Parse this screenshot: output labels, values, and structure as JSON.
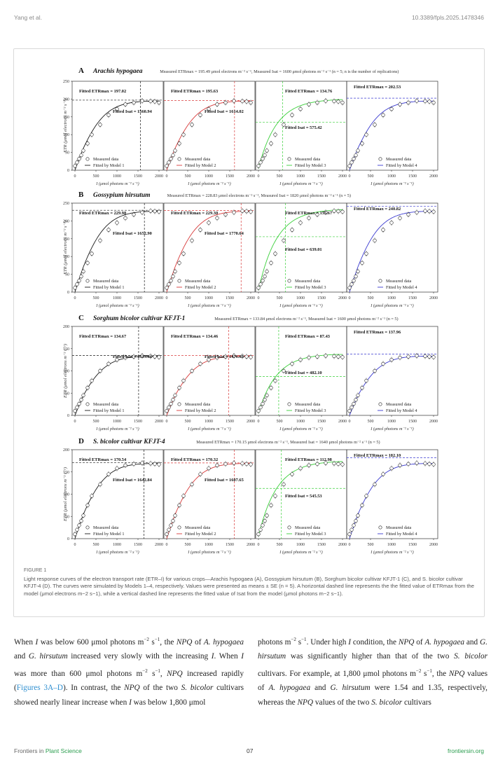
{
  "header": {
    "authors": "Yang et al.",
    "doi": "10.3389/fpls.2025.1478346"
  },
  "figure": {
    "caption_label": "FIGURE 1",
    "caption_text": "Light response curves of the electron transport rate (ETR–I) for various crops—Arachis hypogaea (A), Gossypium hirsutum (B), Sorghum bicolor cultivar KFJT-1 (C), and S. bicolor cultivar KFJT-4 (D). The curves were simulated by Models 1–4, respectively. Values were presented as means ± SE (n = 5). A horizontal dashed line represents the the fitted value of ETRmax from the model (μmol electrons m−2 s−1), while a vertical dashed line represents the fitted value of Isat from the model (μmol photons m−2 s−1).",
    "xlabel": "I (μmol photons m⁻² s⁻¹)",
    "ylabel": "ETR (μmol electrons m⁻² s⁻¹)",
    "legend_measured": "Measured data",
    "model_labels": [
      "Fitted by Model 1",
      "Fitted by Model 2",
      "Fitted by Model 3",
      "Fitted by Model 4"
    ],
    "model_colors": [
      "#1a1a1a",
      "#d83a3a",
      "#3ad03a",
      "#3a3ad0"
    ],
    "xticks": [
      "0",
      "500",
      "1000",
      "1500",
      "2000"
    ]
  },
  "chart_data": [
    {
      "panel": "A",
      "type": "line",
      "species": "Arachis hypogaea",
      "subtitle": "Measured ETRmax = 195.49 μmol electrons m⁻² s⁻¹, Measured Isat = 1600 μmol photons m⁻² s⁻¹ (n = 5; n is the number of replications)",
      "xlim": [
        0,
        2000
      ],
      "ylim": [
        0,
        250
      ],
      "yticks": [
        "0",
        "50",
        "100",
        "150",
        "200",
        "250"
      ],
      "etr_max": 195.49,
      "i_sat": 1600,
      "measured_x": [
        0,
        50,
        100,
        150,
        200,
        300,
        400,
        600,
        800,
        1000,
        1200,
        1400,
        1600,
        1800,
        1900,
        2000
      ],
      "measured_y": [
        12,
        22,
        32,
        42,
        55,
        75,
        100,
        128,
        155,
        172,
        185,
        190,
        195,
        194,
        193,
        190
      ],
      "fits": [
        {
          "etr": "Fitted ETRmax = 197.02",
          "isat": "Fitted Isat = 1560.94",
          "etr_val": 197.02,
          "isat_val": 1560.94
        },
        {
          "etr": "Fitted ETRmax = 195.63",
          "isat": "Fitted Isat = 1614.02",
          "etr_val": 195.63,
          "isat_val": 1614.02
        },
        {
          "etr": "Fitted ETRmax = 134.76",
          "isat": "Fitted Isat = 575.42",
          "etr_val": 134.76,
          "isat_val": 575.42
        },
        {
          "etr": "Fitted ETRmax = 202.53",
          "isat": "",
          "etr_val": 202.53,
          "isat_val": null
        }
      ]
    },
    {
      "panel": "B",
      "type": "line",
      "species": "Gossypium hirsutum",
      "subtitle": "Measured ETRmax = 228.83 μmol electrons m⁻² s⁻¹, Measured Isat = 1820 μmol photons m⁻² s⁻¹ (n = 5)",
      "xlim": [
        0,
        2000
      ],
      "ylim": [
        0,
        250
      ],
      "yticks": [
        "0",
        "50",
        "100",
        "150",
        "200",
        "250"
      ],
      "etr_max": 228.83,
      "i_sat": 1820,
      "measured_x": [
        0,
        50,
        100,
        150,
        200,
        300,
        400,
        600,
        800,
        1000,
        1200,
        1400,
        1600,
        1800,
        1900,
        2000
      ],
      "measured_y": [
        12,
        22,
        32,
        44,
        58,
        82,
        108,
        145,
        175,
        195,
        208,
        218,
        224,
        228,
        227,
        226
      ],
      "fits": [
        {
          "etr": "Fitted ETRmax = 229.98",
          "isat": "Fitted Isat = 1652.90",
          "etr_val": 229.98,
          "isat_val": 1652.9
        },
        {
          "etr": "Fitted ETRmax = 229.30",
          "isat": "Fitted Isat = 1770.64",
          "etr_val": 229.3,
          "isat_val": 1770.64
        },
        {
          "etr": "Fitted ETRmax = 155.67",
          "isat": "Fitted Isat = 639.01",
          "etr_val": 155.67,
          "isat_val": 639.01
        },
        {
          "etr": "Fitted ETRmax = 240.82",
          "isat": "",
          "etr_val": 240.82,
          "isat_val": null
        }
      ]
    },
    {
      "panel": "C",
      "type": "line",
      "species": "Sorghum bicolor cultivar KFJT-1",
      "subtitle": "Measured ETRmax = 133.84 μmol electrons m⁻² s⁻¹, Measured Isat = 1600 μmol photons m⁻² s⁻¹ (n = 5)",
      "xlim": [
        0,
        2000
      ],
      "ylim": [
        0,
        200
      ],
      "yticks": [
        "0",
        "50",
        "100",
        "150",
        "200"
      ],
      "etr_max": 133.84,
      "i_sat": 1600,
      "measured_x": [
        0,
        50,
        100,
        150,
        200,
        300,
        400,
        600,
        800,
        1000,
        1200,
        1400,
        1600,
        1800,
        1900,
        2000
      ],
      "measured_y": [
        10,
        18,
        26,
        35,
        45,
        62,
        78,
        100,
        116,
        125,
        130,
        132,
        134,
        133,
        132,
        131
      ],
      "fits": [
        {
          "etr": "Fitted ETRmax = 134.67",
          "isat": "Fitted Isat = 1515.04",
          "etr_val": 134.67,
          "isat_val": 1515.04
        },
        {
          "etr": "Fitted ETRmax = 134.46",
          "isat": "Fitted Isat = 1476.69",
          "etr_val": 134.46,
          "isat_val": 1476.69
        },
        {
          "etr": "Fitted ETRmax = 87.43",
          "isat": "Fitted Isat = 482.10",
          "etr_val": 87.43,
          "isat_val": 482.1
        },
        {
          "etr": "Fitted ETRmax = 137.96",
          "isat": "",
          "etr_val": 137.96,
          "isat_val": null
        }
      ]
    },
    {
      "panel": "D",
      "type": "line",
      "species": "S. bicolor cultivar KFJT-4",
      "subtitle": "Measured ETRmax = 170.15 μmol electrons m⁻² s⁻¹, Measured Isat = 1640 μmol photons m⁻² s⁻¹ (n = 5)",
      "xlim": [
        0,
        2000
      ],
      "ylim": [
        0,
        200
      ],
      "yticks": [
        "0",
        "50",
        "100",
        "150",
        "200"
      ],
      "etr_max": 170.15,
      "i_sat": 1640,
      "measured_x": [
        0,
        50,
        100,
        150,
        200,
        300,
        400,
        600,
        800,
        1000,
        1200,
        1400,
        1600,
        1800,
        1900,
        2000
      ],
      "measured_y": [
        10,
        20,
        30,
        40,
        52,
        75,
        96,
        122,
        145,
        158,
        165,
        168,
        170,
        169,
        168,
        167
      ],
      "fits": [
        {
          "etr": "Fitted ETRmax = 170.54",
          "isat": "Fitted Isat = 1642.84",
          "etr_val": 170.54,
          "isat_val": 1642.84
        },
        {
          "etr": "Fitted ETRmax = 170.32",
          "isat": "Fitted Isat = 1607.65",
          "etr_val": 170.32,
          "isat_val": 1607.65
        },
        {
          "etr": "Fitted ETRmax = 112.98",
          "isat": "Fitted Isat = 545.53",
          "etr_val": 112.98,
          "isat_val": 545.53
        },
        {
          "etr": "Fitted ETRmax = 182.10",
          "isat": "",
          "etr_val": 182.1,
          "isat_val": null
        }
      ]
    }
  ],
  "body": {
    "left": [
      "When ",
      {
        "i": "I"
      },
      " was below 600 μmol photons m",
      {
        "sup": "−2"
      },
      " s",
      {
        "sup": "−1"
      },
      ", the ",
      {
        "i": "NPQ"
      },
      " of ",
      {
        "i": "A. hypogaea"
      },
      " and ",
      {
        "i": "G. hirsutum"
      },
      " increased very slowly with the increasing ",
      {
        "i": "I"
      },
      ". When ",
      {
        "i": "I"
      },
      " was more than 600 μmol photons m",
      {
        "sup": "−2"
      },
      " s",
      {
        "sup": "−1"
      },
      ", ",
      {
        "i": "NPQ"
      },
      " increased rapidly (",
      {
        "lnk": "Figures 3A–D"
      },
      "). In contrast, the ",
      {
        "i": "NPQ"
      },
      " of the two ",
      {
        "i": "S. bicolor"
      },
      " cultivars showed nearly linear increase when ",
      {
        "i": "I"
      },
      " was below 1,800 μmol"
    ],
    "right": [
      "photons m",
      {
        "sup": "−2"
      },
      " s",
      {
        "sup": "−1"
      },
      ". Under high ",
      {
        "i": "I"
      },
      " condition, the ",
      {
        "i": "NPQ"
      },
      " of ",
      {
        "i": "A. hypogaea"
      },
      " and ",
      {
        "i": "G. hirsutum"
      },
      " was significantly higher than that of the two ",
      {
        "i": "S. bicolor"
      },
      " cultivars. For example, at 1,800 μmol photons m",
      {
        "sup": "−2"
      },
      " s",
      {
        "sup": "−1"
      },
      ", the ",
      {
        "i": "NPQ"
      },
      " values of ",
      {
        "i": "A. hypogaea"
      },
      " and ",
      {
        "i": "G. hirsutum"
      },
      " were 1.54 and 1.35, respectively, whereas the ",
      {
        "i": "NPQ"
      },
      " values of the two ",
      {
        "i": "S. bicolor"
      },
      " cultivars"
    ]
  },
  "footer": {
    "journal_prefix": "Frontiers in ",
    "journal_name": "Plant Science",
    "page": "07",
    "site": "frontiersin.org"
  }
}
